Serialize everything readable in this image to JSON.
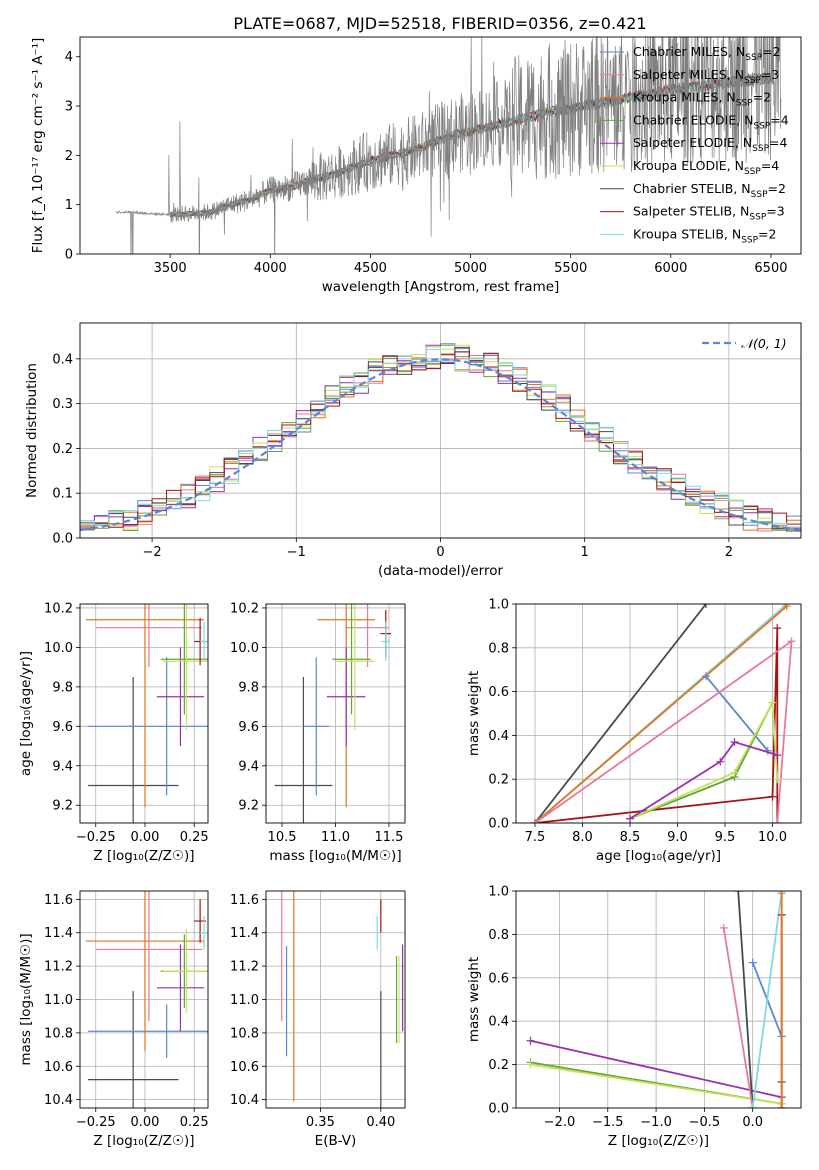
{
  "figure_title": "PLATE=0687, MJD=52518, FIBERID=0356, z=0.421",
  "colors": {
    "Chabrier MILES": "#5b86d6",
    "Salpeter MILES": "#e5799f",
    "Kroupa MILES": "#e1761c",
    "Chabrier ELODIE": "#60a63a",
    "Salpeter ELODIE": "#9a2fb0",
    "Kroupa ELODIE": "#c6e25a",
    "Chabrier STELIB": "#4a4a4a",
    "Salpeter STELIB": "#a61515",
    "Kroupa STELIB": "#7fd9e3",
    "data": "#808080",
    "normal": "#5b86d6"
  },
  "chart_data": [
    {
      "id": "spectrum",
      "type": "line",
      "xlabel": "wavelength [Angstrom, rest frame]",
      "ylabel": "Flux [f_λ 10⁻¹⁷ erg cm⁻² s⁻¹ A⁻¹]",
      "xlim": [
        3050,
        6650
      ],
      "ylim": [
        0,
        4.4
      ],
      "xticks": [
        "3500",
        "4000",
        "4500",
        "5000",
        "5500",
        "6000",
        "6500"
      ],
      "yticks": [
        "0",
        "1",
        "2",
        "3",
        "4"
      ],
      "grid": false,
      "legend": "top-right",
      "legend_entries": [
        {
          "label": "Chabrier MILES, N",
          "sub": "SSP",
          "tail": "=2",
          "key": "Chabrier MILES"
        },
        {
          "label": "Salpeter MILES, N",
          "sub": "SSP",
          "tail": "=3",
          "key": "Salpeter MILES"
        },
        {
          "label": "Kroupa MILES, N",
          "sub": "SSP",
          "tail": "=2",
          "key": "Kroupa MILES"
        },
        {
          "label": "Chabrier ELODIE, N",
          "sub": "SSP",
          "tail": "=4",
          "key": "Chabrier ELODIE"
        },
        {
          "label": "Salpeter ELODIE, N",
          "sub": "SSP",
          "tail": "=4",
          "key": "Salpeter ELODIE"
        },
        {
          "label": "Kroupa ELODIE, N",
          "sub": "SSP",
          "tail": "=4",
          "key": "Kroupa ELODIE"
        },
        {
          "label": "Chabrier STELIB, N",
          "sub": "SSP",
          "tail": "=2",
          "key": "Chabrier STELIB"
        },
        {
          "label": "Salpeter STELIB, N",
          "sub": "SSP",
          "tail": "=3",
          "key": "Salpeter STELIB"
        },
        {
          "label": "Kroupa STELIB, N",
          "sub": "SSP",
          "tail": "=2",
          "key": "Kroupa STELIB"
        }
      ],
      "continuum": {
        "x": [
          3230,
          3300,
          3400,
          3500,
          3600,
          3700,
          3800,
          3900,
          3950,
          4000,
          4100,
          4200,
          4300,
          4400,
          4500,
          4600,
          4700,
          4800,
          4900,
          5000,
          5100,
          5200,
          5300,
          5400,
          5500,
          5600,
          5700,
          5800,
          5900,
          6000,
          6100,
          6200,
          6300,
          6400,
          6500,
          6550
        ],
        "y": [
          0.85,
          0.85,
          0.82,
          0.8,
          0.82,
          0.85,
          1.0,
          1.1,
          1.2,
          1.3,
          1.35,
          1.5,
          1.6,
          1.75,
          1.9,
          2.0,
          2.1,
          2.25,
          2.4,
          2.5,
          2.6,
          2.7,
          2.8,
          2.9,
          2.95,
          3.05,
          3.1,
          3.2,
          3.25,
          3.35,
          3.4,
          3.45,
          3.5,
          3.55,
          3.6,
          3.6
        ]
      },
      "model_x_range": [
        3500,
        6500
      ],
      "data_x_range": [
        3230,
        6550
      ]
    },
    {
      "id": "residuals",
      "type": "histogram",
      "xlabel": "(data-model)/error",
      "ylabel": "Normed distribution",
      "xlim": [
        -2.5,
        2.5
      ],
      "ylim": [
        0,
        0.48
      ],
      "xticks": [
        "−2",
        "−1",
        "0",
        "1",
        "2"
      ],
      "yticks": [
        "0.0",
        "0.1",
        "0.2",
        "0.3",
        "0.4"
      ],
      "grid": true,
      "legend": "top-right",
      "normal_label": "𝒩(0, 1)",
      "bins": 50
    },
    {
      "id": "age_vs_Z",
      "type": "errorbar",
      "xlabel": "Z [log₁₀(Z/Z☉)]",
      "ylabel": "age  [log₁₀(age/yr)]",
      "xlim": [
        -0.33,
        0.32
      ],
      "ylim": [
        9.11,
        10.22
      ],
      "xticks": [
        "−0.25",
        "0.00",
        "0.25"
      ],
      "yticks": [
        "9.2",
        "9.4",
        "9.6",
        "9.8",
        "10.0",
        "10.2"
      ],
      "grid": true,
      "points": [
        {
          "model": "Chabrier STELIB",
          "x": -0.06,
          "xerr": 0.23,
          "y": 9.3,
          "yerr": 0.55
        },
        {
          "model": "Chabrier MILES",
          "x": 0.11,
          "xerr": 0.4,
          "y": 9.6,
          "yerr": 0.35
        },
        {
          "model": "Salpeter MILES",
          "x": 0.02,
          "xerr": 0.27,
          "y": 10.1,
          "yerr": 0.2
        },
        {
          "model": "Kroupa MILES",
          "x": 0.0,
          "xerr": 0.3,
          "y": 10.14,
          "yerr": 0.95
        },
        {
          "model": "Salpeter ELODIE",
          "x": 0.18,
          "xerr": 0.12,
          "y": 9.75,
          "yerr": 0.25
        },
        {
          "model": "Chabrier ELODIE",
          "x": 0.2,
          "xerr": 0.12,
          "y": 9.94,
          "yerr": 0.28
        },
        {
          "model": "Kroupa ELODIE",
          "x": 0.21,
          "xerr": 0.12,
          "y": 9.93,
          "yerr": 0.35
        },
        {
          "model": "Salpeter STELIB",
          "x": 0.28,
          "xerr": 0.03,
          "y": 10.03,
          "yerr": 0.12
        },
        {
          "model": "Kroupa STELIB",
          "x": 0.3,
          "xerr": 0.02,
          "y": 10.03,
          "yerr": 0.1
        }
      ]
    },
    {
      "id": "age_vs_mass",
      "type": "errorbar",
      "xlabel": "mass [log₁₀(M/M☉)]",
      "ylabel": "",
      "xlim": [
        10.35,
        11.65
      ],
      "ylim": [
        9.11,
        10.22
      ],
      "xticks": [
        "10.5",
        "11.0",
        "11.5"
      ],
      "yticks": [
        "9.2",
        "9.4",
        "9.6",
        "9.8",
        "10.0",
        "10.2"
      ],
      "grid": true,
      "points": [
        {
          "model": "Chabrier STELIB",
          "x": 10.7,
          "xerr": 0.27,
          "y": 9.3,
          "yerr": 0.55
        },
        {
          "model": "Chabrier MILES",
          "x": 10.82,
          "xerr": 0.12,
          "y": 9.6,
          "yerr": 0.35
        },
        {
          "model": "Salpeter MILES",
          "x": 11.3,
          "xerr": 0.2,
          "y": 10.1,
          "yerr": 0.2
        },
        {
          "model": "Kroupa MILES",
          "x": 11.1,
          "xerr": 0.27,
          "y": 10.14,
          "yerr": 0.95
        },
        {
          "model": "Salpeter ELODIE",
          "x": 11.1,
          "xerr": 0.18,
          "y": 9.75,
          "yerr": 0.25
        },
        {
          "model": "Chabrier ELODIE",
          "x": 11.15,
          "xerr": 0.18,
          "y": 9.94,
          "yerr": 0.28
        },
        {
          "model": "Kroupa ELODIE",
          "x": 11.18,
          "xerr": 0.18,
          "y": 9.93,
          "yerr": 0.35
        },
        {
          "model": "Salpeter STELIB",
          "x": 11.47,
          "xerr": 0.05,
          "y": 10.07,
          "yerr": 0.12
        },
        {
          "model": "Kroupa STELIB",
          "x": 11.47,
          "xerr": 0.04,
          "y": 10.03,
          "yerr": 0.1
        }
      ]
    },
    {
      "id": "massweight_vs_age",
      "type": "line",
      "xlabel": "age  [log₁₀(age/yr)]",
      "ylabel": "mass weight",
      "xlim": [
        7.3,
        10.3
      ],
      "ylim": [
        0,
        1
      ],
      "xticks": [
        "7.5",
        "8.0",
        "8.5",
        "9.0",
        "9.5",
        "10.0"
      ],
      "yticks": [
        "0.0",
        "0.2",
        "0.4",
        "0.6",
        "0.8",
        "1.0"
      ],
      "grid": true,
      "series": [
        {
          "model": "Chabrier STELIB",
          "x": [
            7.5,
            9.3
          ],
          "y": [
            0.0,
            1.0
          ]
        },
        {
          "model": "Kroupa STELIB",
          "x": [
            7.5,
            10.15
          ],
          "y": [
            0.0,
            1.0
          ]
        },
        {
          "model": "Kroupa MILES",
          "x": [
            7.5,
            10.15
          ],
          "y": [
            0.0,
            0.99
          ]
        },
        {
          "model": "Chabrier MILES",
          "x": [
            9.3,
            9.95
          ],
          "y": [
            0.67,
            0.33
          ]
        },
        {
          "model": "Salpeter STELIB",
          "x": [
            7.5,
            10.0,
            10.05,
            10.05
          ],
          "y": [
            0.0,
            0.12,
            0.89,
            0.0
          ]
        },
        {
          "model": "Salpeter MILES",
          "x": [
            7.5,
            10.2,
            10.05
          ],
          "y": [
            0.0,
            0.83,
            0.0
          ]
        },
        {
          "model": "Chabrier ELODIE",
          "x": [
            8.5,
            9.6,
            10.0
          ],
          "y": [
            0.02,
            0.21,
            0.55
          ]
        },
        {
          "model": "Kroupa ELODIE",
          "x": [
            8.5,
            9.6,
            10.0,
            10.05
          ],
          "y": [
            0.02,
            0.23,
            0.55,
            0.2
          ]
        },
        {
          "model": "Salpeter ELODIE",
          "x": [
            8.5,
            9.45,
            9.6,
            10.05
          ],
          "y": [
            0.02,
            0.28,
            0.37,
            0.31
          ]
        }
      ]
    },
    {
      "id": "mass_vs_Z",
      "type": "errorbar",
      "xlabel": "Z [log₁₀(Z/Z☉)]",
      "ylabel": "mass [log₁₀(M/M☉)]",
      "xlim": [
        -0.33,
        0.32
      ],
      "ylim": [
        10.35,
        11.65
      ],
      "xticks": [
        "−0.25",
        "0.00",
        "0.25"
      ],
      "yticks": [
        "10.4",
        "10.6",
        "10.8",
        "11.0",
        "11.2",
        "11.4",
        "11.6"
      ],
      "grid": true,
      "points": [
        {
          "model": "Chabrier STELIB",
          "x": -0.06,
          "xerr": 0.23,
          "y": 10.52,
          "yerr": 0.53
        },
        {
          "model": "Chabrier MILES",
          "x": 0.11,
          "xerr": 0.4,
          "y": 10.81,
          "yerr": 0.16
        },
        {
          "model": "Salpeter MILES",
          "x": 0.02,
          "xerr": 0.27,
          "y": 11.3,
          "yerr": 0.43
        },
        {
          "model": "Kroupa MILES",
          "x": 0.0,
          "xerr": 0.3,
          "y": 11.35,
          "yerr": 0.66
        },
        {
          "model": "Salpeter ELODIE",
          "x": 0.18,
          "xerr": 0.12,
          "y": 11.07,
          "yerr": 0.26
        },
        {
          "model": "Chabrier ELODIE",
          "x": 0.2,
          "xerr": 0.12,
          "y": 11.17,
          "yerr": 0.22
        },
        {
          "model": "Kroupa ELODIE",
          "x": 0.21,
          "xerr": 0.12,
          "y": 11.17,
          "yerr": 0.25
        },
        {
          "model": "Salpeter STELIB",
          "x": 0.28,
          "xerr": 0.03,
          "y": 11.47,
          "yerr": 0.13
        },
        {
          "model": "Kroupa STELIB",
          "x": 0.3,
          "xerr": 0.02,
          "y": 11.4,
          "yerr": 0.1
        }
      ]
    },
    {
      "id": "mass_vs_EBV",
      "type": "errorbar",
      "xlabel": "E(B-V)",
      "ylabel": "",
      "xlim": [
        0.305,
        0.42
      ],
      "ylim": [
        10.35,
        11.65
      ],
      "xticks": [
        "0.35",
        "0.40"
      ],
      "yticks": [
        "10.4",
        "10.6",
        "10.8",
        "11.0",
        "11.2",
        "11.4",
        "11.6"
      ],
      "grid": true,
      "points": [
        {
          "model": "Salpeter MILES",
          "x": 0.318,
          "yerr": 0.43,
          "y": 11.3
        },
        {
          "model": "Chabrier MILES",
          "x": 0.322,
          "yerr": 0.33,
          "y": 10.99
        },
        {
          "model": "Kroupa MILES",
          "x": 0.328,
          "yerr": 0.66,
          "y": 11.05
        },
        {
          "model": "Kroupa STELIB",
          "x": 0.397,
          "yerr": 0.1,
          "y": 11.4
        },
        {
          "model": "Salpeter STELIB",
          "x": 0.4,
          "yerr": 0.1,
          "y": 11.5
        },
        {
          "model": "Chabrier STELIB",
          "x": 0.4,
          "yerr": 0.53,
          "y": 10.52
        },
        {
          "model": "Chabrier ELODIE",
          "x": 0.413,
          "yerr": 0.26,
          "y": 11.0
        },
        {
          "model": "Kroupa ELODIE",
          "x": 0.415,
          "yerr": 0.26,
          "y": 11.0
        },
        {
          "model": "Salpeter ELODIE",
          "x": 0.418,
          "yerr": 0.26,
          "y": 11.07
        }
      ]
    },
    {
      "id": "massweight_vs_Z",
      "type": "line",
      "xlabel": "Z [log₁₀(Z/Z☉)]",
      "ylabel": "mass weight",
      "xlim": [
        -2.45,
        0.5
      ],
      "ylim": [
        0,
        1
      ],
      "xticks": [
        "−2.0",
        "−1.5",
        "−1.0",
        "−0.5",
        "0.0"
      ],
      "yticks": [
        "0.0",
        "0.2",
        "0.4",
        "0.6",
        "0.8",
        "1.0"
      ],
      "grid": true,
      "series": [
        {
          "model": "Chabrier ELODIE",
          "x": [
            -2.3,
            0.3
          ],
          "y": [
            0.21,
            0.02
          ]
        },
        {
          "model": "Kroupa ELODIE",
          "x": [
            -2.3,
            0.3
          ],
          "y": [
            0.2,
            0.02
          ]
        },
        {
          "model": "Salpeter ELODIE",
          "x": [
            -2.3,
            0.3
          ],
          "y": [
            0.31,
            0.05
          ]
        },
        {
          "model": "Chabrier STELIB",
          "x": [
            -0.15,
            0.0
          ],
          "y": [
            1.0,
            0.0
          ]
        },
        {
          "model": "Salpeter MILES",
          "x": [
            -0.3,
            0.0
          ],
          "y": [
            0.83,
            0.0
          ]
        },
        {
          "model": "Chabrier MILES",
          "x": [
            0.0,
            0.3
          ],
          "y": [
            0.67,
            0.33
          ]
        },
        {
          "model": "Kroupa STELIB",
          "x": [
            0.0,
            0.3
          ],
          "y": [
            0.0,
            1.0
          ]
        },
        {
          "model": "Salpeter STELIB",
          "x": [
            0.3,
            0.3,
            0.3
          ],
          "y": [
            0.0,
            0.89,
            0.12
          ]
        },
        {
          "model": "Kroupa MILES",
          "x": [
            0.3,
            0.3
          ],
          "y": [
            0.0,
            0.99
          ]
        }
      ]
    }
  ]
}
